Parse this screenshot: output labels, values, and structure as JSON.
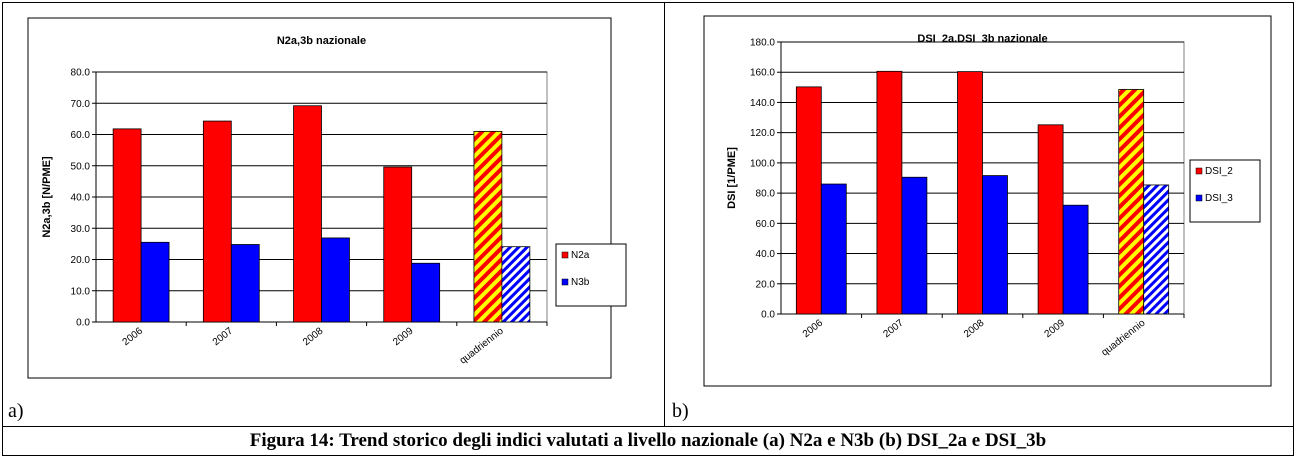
{
  "panels": [
    {
      "label": "a)"
    },
    {
      "label": "b)"
    }
  ],
  "caption": "Figura 14: Trend storico degli indici valutati a livello nazionale (a) N2a e N3b (b) DSI_2a e DSI_3b",
  "colors": {
    "series1": "#ff0000",
    "series2": "#0000ff",
    "hatch1_bg": "#ffff00",
    "hatch2_bg": "#ffffff",
    "plot_bg": "#ffffff",
    "grid": "#000000"
  },
  "chart_data": [
    {
      "type": "bar",
      "title": "N2a,3b nazionale",
      "xlabel": "",
      "ylabel": "N2a,3b  [N/PME]",
      "categories": [
        "2006",
        "2007",
        "2008",
        "2009",
        "quadriennio"
      ],
      "series": [
        {
          "name": "N2a",
          "values": [
            61.8,
            64.3,
            69.2,
            49.6,
            61.0
          ]
        },
        {
          "name": "N3b",
          "values": [
            25.5,
            24.8,
            26.9,
            18.8,
            24.1
          ]
        }
      ],
      "hatched_category": "quadriennio",
      "ylim": [
        0,
        80
      ],
      "yticks": [
        "0.0",
        "10.0",
        "20.0",
        "30.0",
        "40.0",
        "50.0",
        "60.0",
        "70.0",
        "80.0"
      ],
      "grid": true,
      "legend": "right"
    },
    {
      "type": "bar",
      "title": "DSI_2a,DSI_3b nazionale",
      "xlabel": "",
      "ylabel": "DSI [1/PME]",
      "categories": [
        "2006",
        "2007",
        "2008",
        "2009",
        "quadriennio"
      ],
      "series": [
        {
          "name": "DSI_2",
          "values": [
            150.3,
            160.6,
            160.4,
            125.2,
            148.6
          ]
        },
        {
          "name": "DSI_3",
          "values": [
            86.0,
            90.5,
            91.6,
            72.0,
            85.4
          ]
        }
      ],
      "hatched_category": "quadriennio",
      "ylim": [
        0,
        180
      ],
      "yticks": [
        "0.0",
        "20.0",
        "40.0",
        "60.0",
        "80.0",
        "100.0",
        "120.0",
        "140.0",
        "160.0",
        "180.0"
      ],
      "grid": true,
      "legend": "right"
    }
  ]
}
